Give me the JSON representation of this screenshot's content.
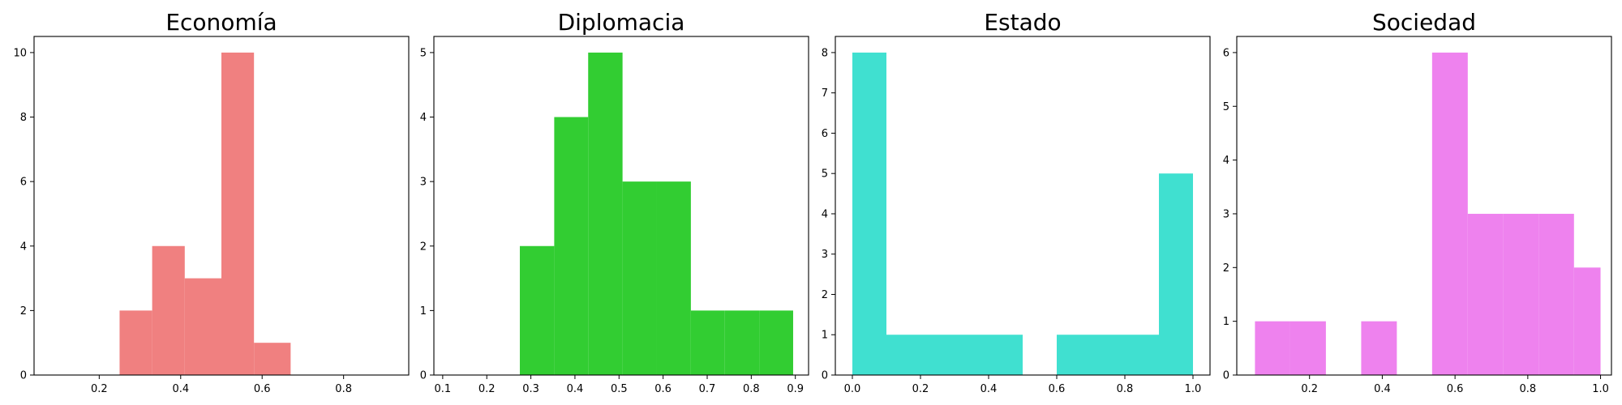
{
  "chart_data": [
    {
      "type": "bar",
      "subtype": "histogram",
      "title": "Economía",
      "color": "#F08080",
      "xlim": [
        0.04,
        0.96
      ],
      "ylim": [
        0,
        10.5
      ],
      "xticks": [
        0.2,
        0.4,
        0.6,
        0.8
      ],
      "xtick_labels": [
        "0.2",
        "0.4",
        "0.6",
        "0.8"
      ],
      "yticks": [
        0,
        2,
        4,
        6,
        8,
        10
      ],
      "ytick_labels": [
        "0",
        "2",
        "4",
        "6",
        "8",
        "10"
      ],
      "bins": [
        {
          "x0": 0.25,
          "x1": 0.33,
          "count": 2
        },
        {
          "x0": 0.33,
          "x1": 0.41,
          "count": 4
        },
        {
          "x0": 0.41,
          "x1": 0.5,
          "count": 3
        },
        {
          "x0": 0.5,
          "x1": 0.58,
          "count": 10
        },
        {
          "x0": 0.58,
          "x1": 0.67,
          "count": 1
        }
      ]
    },
    {
      "type": "bar",
      "subtype": "histogram",
      "title": "Diplomacia",
      "color": "#32CD32",
      "xlim": [
        0.08,
        0.93
      ],
      "ylim": [
        0,
        5.25
      ],
      "xticks": [
        0.1,
        0.2,
        0.3,
        0.4,
        0.5,
        0.6,
        0.7,
        0.8,
        0.9
      ],
      "xtick_labels": [
        "0.1",
        "0.2",
        "0.3",
        "0.4",
        "0.5",
        "0.6",
        "0.7",
        "0.8",
        "0.9"
      ],
      "yticks": [
        0,
        1,
        2,
        3,
        4,
        5
      ],
      "ytick_labels": [
        "0",
        "1",
        "2",
        "3",
        "4",
        "5"
      ],
      "bins": [
        {
          "x0": 0.275,
          "x1": 0.353,
          "count": 2
        },
        {
          "x0": 0.353,
          "x1": 0.43,
          "count": 4
        },
        {
          "x0": 0.43,
          "x1": 0.508,
          "count": 5
        },
        {
          "x0": 0.508,
          "x1": 0.585,
          "count": 3
        },
        {
          "x0": 0.585,
          "x1": 0.663,
          "count": 3
        },
        {
          "x0": 0.663,
          "x1": 0.74,
          "count": 1
        },
        {
          "x0": 0.74,
          "x1": 0.818,
          "count": 1
        },
        {
          "x0": 0.818,
          "x1": 0.895,
          "count": 1
        }
      ]
    },
    {
      "type": "bar",
      "subtype": "histogram",
      "title": "Estado",
      "color": "#40E0D0",
      "xlim": [
        -0.05,
        1.05
      ],
      "ylim": [
        0,
        8.4
      ],
      "xticks": [
        0.0,
        0.2,
        0.4,
        0.6,
        0.8,
        1.0
      ],
      "xtick_labels": [
        "0.0",
        "0.2",
        "0.4",
        "0.6",
        "0.8",
        "1.0"
      ],
      "yticks": [
        0,
        1,
        2,
        3,
        4,
        5,
        6,
        7,
        8
      ],
      "ytick_labels": [
        "0",
        "1",
        "2",
        "3",
        "4",
        "5",
        "6",
        "7",
        "8"
      ],
      "bins": [
        {
          "x0": 0.0,
          "x1": 0.1,
          "count": 8
        },
        {
          "x0": 0.1,
          "x1": 0.2,
          "count": 1
        },
        {
          "x0": 0.2,
          "x1": 0.3,
          "count": 1
        },
        {
          "x0": 0.3,
          "x1": 0.4,
          "count": 1
        },
        {
          "x0": 0.4,
          "x1": 0.5,
          "count": 1
        },
        {
          "x0": 0.5,
          "x1": 0.6,
          "count": 0
        },
        {
          "x0": 0.6,
          "x1": 0.7,
          "count": 1
        },
        {
          "x0": 0.7,
          "x1": 0.8,
          "count": 1
        },
        {
          "x0": 0.8,
          "x1": 0.9,
          "count": 1
        },
        {
          "x0": 0.9,
          "x1": 1.0,
          "count": 5
        }
      ]
    },
    {
      "type": "bar",
      "subtype": "histogram",
      "title": "Sociedad",
      "color": "#EE82EE",
      "xlim": [
        0.0,
        1.03
      ],
      "ylim": [
        0,
        6.3
      ],
      "xticks": [
        0.2,
        0.4,
        0.6,
        0.8,
        1.0
      ],
      "xtick_labels": [
        "0.2",
        "0.4",
        "0.6",
        "0.8",
        "1.0"
      ],
      "yticks": [
        0,
        1,
        2,
        3,
        4,
        5,
        6
      ],
      "ytick_labels": [
        "0",
        "1",
        "2",
        "3",
        "4",
        "5",
        "6"
      ],
      "bins": [
        {
          "x0": 0.05,
          "x1": 0.147,
          "count": 1
        },
        {
          "x0": 0.147,
          "x1": 0.245,
          "count": 1
        },
        {
          "x0": 0.245,
          "x1": 0.342,
          "count": 0
        },
        {
          "x0": 0.342,
          "x1": 0.44,
          "count": 1
        },
        {
          "x0": 0.44,
          "x1": 0.537,
          "count": 0
        },
        {
          "x0": 0.537,
          "x1": 0.635,
          "count": 6
        },
        {
          "x0": 0.635,
          "x1": 0.732,
          "count": 3
        },
        {
          "x0": 0.732,
          "x1": 0.83,
          "count": 3
        },
        {
          "x0": 0.83,
          "x1": 0.927,
          "count": 3
        },
        {
          "x0": 0.927,
          "x1": 1.0,
          "count": 2
        }
      ]
    }
  ]
}
